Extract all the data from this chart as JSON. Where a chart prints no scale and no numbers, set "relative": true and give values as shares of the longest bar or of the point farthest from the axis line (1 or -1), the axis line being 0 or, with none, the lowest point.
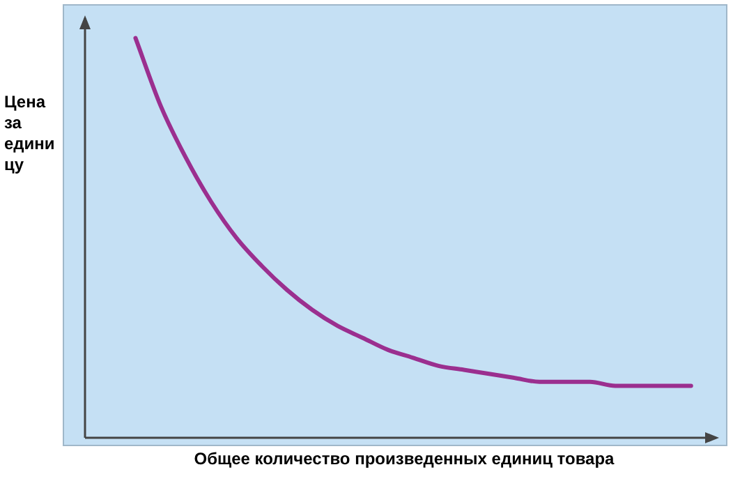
{
  "chart_data": {
    "type": "line",
    "relative": true,
    "ylabel": "Цена за единицу",
    "xlabel": "Общее количество произведенных единиц товара",
    "categories": [
      null,
      null,
      null,
      null,
      null,
      null,
      null,
      null,
      null,
      null,
      null,
      null,
      null,
      null,
      null,
      null,
      null,
      null,
      null,
      null,
      null,
      null,
      null,
      null,
      null,
      null
    ],
    "series": [
      {
        "color": "#9b2f8f",
        "values": [
          null,
          null,
          1,
          0.83,
          0.7,
          0.59,
          0.5,
          0.43,
          0.37,
          0.32,
          0.28,
          0.25,
          0.22,
          0.2,
          0.18,
          0.17,
          0.16,
          0.15,
          0.14,
          0.14,
          0.14,
          0.13,
          0.13,
          0.13,
          0.13,
          null
        ]
      }
    ],
    "legend": false,
    "grid": false,
    "marker": "none"
  }
}
